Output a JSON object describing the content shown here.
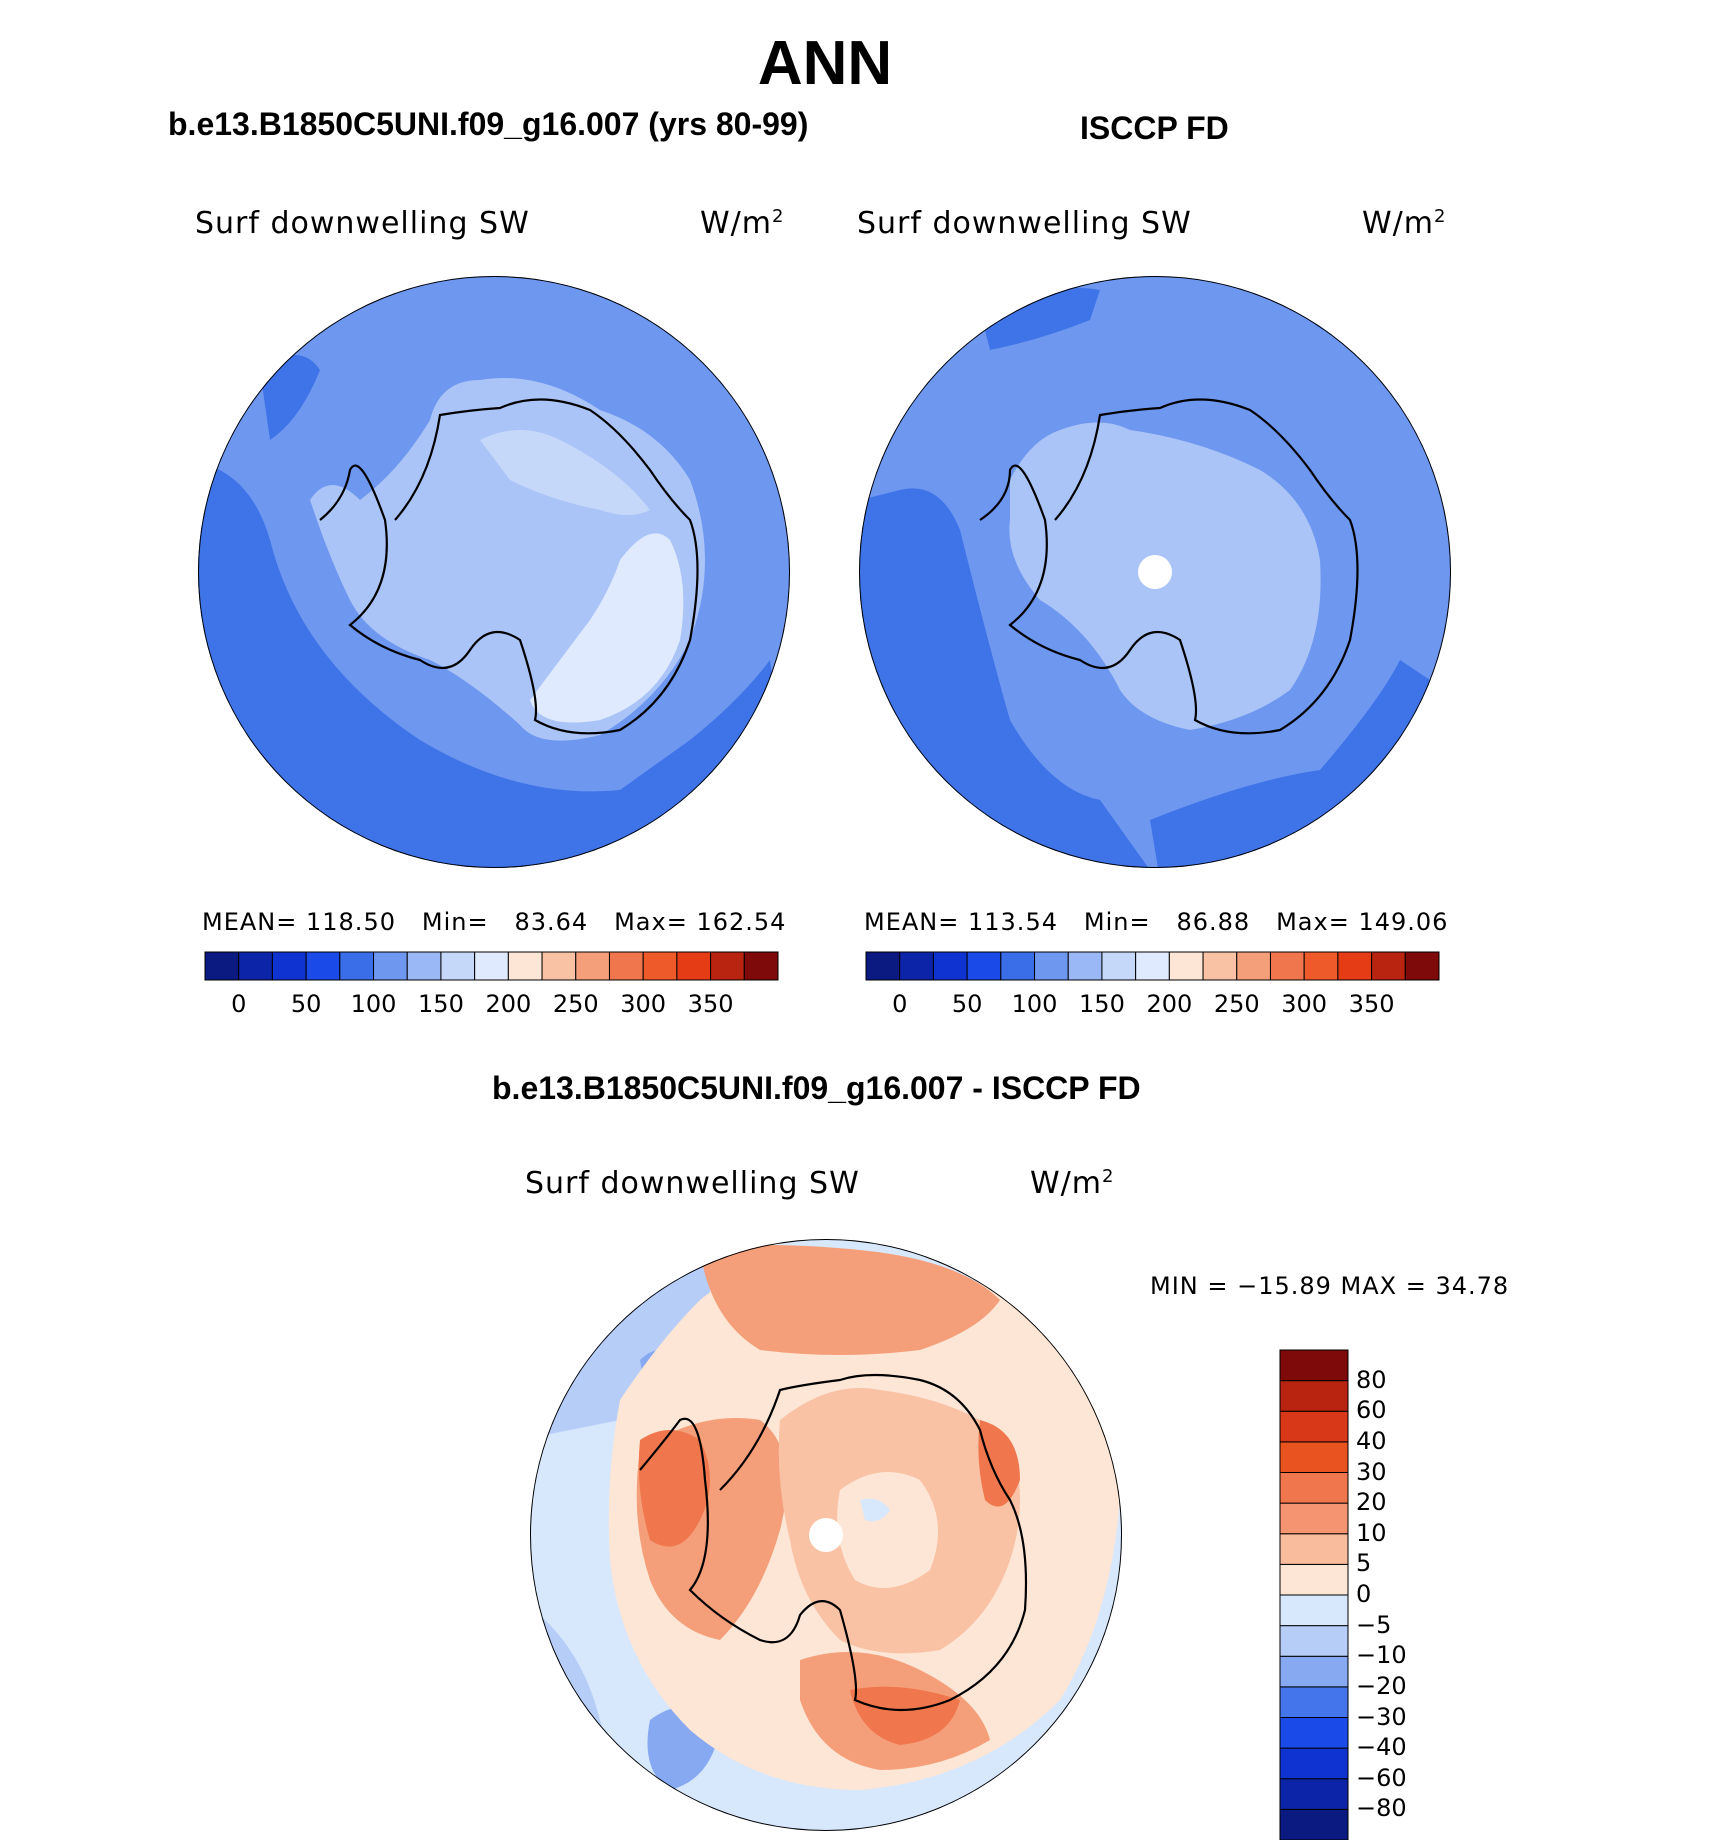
{
  "title": "ANN",
  "panels": {
    "model": {
      "heading": "b.e13.B1850C5UNI.f09_g16.007 (yrs 80-99)",
      "variable": "Surf  downwelling  SW",
      "units": "W/m",
      "units_sup": "2",
      "stats": {
        "mean_label": "MEAN=",
        "mean": "118.50",
        "min_label": "Min=",
        "min": "83.64",
        "max_label": "Max=",
        "max": "162.54"
      }
    },
    "obs": {
      "heading": "ISCCP FD",
      "variable": "Surf  downwelling  SW",
      "units": "W/m",
      "units_sup": "2",
      "stats": {
        "mean_label": "MEAN=",
        "mean": "113.54",
        "min_label": "Min=",
        "min": "86.88",
        "max_label": "Max=",
        "max": "149.06"
      }
    },
    "diff": {
      "heading": "b.e13.B1850C5UNI.f09_g16.007 - ISCCP FD",
      "variable": "Surf  downwelling  SW",
      "units": "W/m",
      "units_sup": "2",
      "minmax": "MIN  =  −15.89  MAX  =    34.78"
    }
  },
  "colorbar_abs": {
    "colors": [
      "#0a1a80",
      "#0b24a8",
      "#0f33d0",
      "#1a4ae8",
      "#3a6de8",
      "#6e97f0",
      "#9ab8f5",
      "#c5d8fa",
      "#dfeaff",
      "#fde6d6",
      "#f9c2a4",
      "#f59f7a",
      "#f0774d",
      "#ef5a2a",
      "#e63c15",
      "#b82410",
      "#7e0a0a"
    ],
    "labels": [
      "0",
      "50",
      "100",
      "150",
      "200",
      "250",
      "300",
      "350"
    ]
  },
  "colorbar_diff": {
    "colors": [
      "#0a1a80",
      "#0b24a8",
      "#0f33d0",
      "#1a4ae8",
      "#4575ea",
      "#86a9f2",
      "#b6cdf8",
      "#d7e7fc",
      "#fde6d6",
      "#f9bc9c",
      "#f59470",
      "#f0774d",
      "#e9531f",
      "#d93818",
      "#b82410",
      "#7e0a0a"
    ],
    "labels": [
      "80",
      "60",
      "40",
      "30",
      "20",
      "10",
      "5",
      "0",
      "−5",
      "−10",
      "−20",
      "−30",
      "−40",
      "−60",
      "−80"
    ]
  },
  "map_colors": {
    "ocean_a": "#3f73e8",
    "ocean_b": "#6e97f0",
    "ice_a": "#aac4f7",
    "ice_b": "#c5d8fa",
    "ice_c": "#dfeaff",
    "warm_a": "#fde6d6",
    "warm_b": "#f9c2a4",
    "warm_c": "#f59f7a",
    "warm_d": "#f0774d",
    "cool_a": "#d7e7fc",
    "cool_b": "#b6cdf8",
    "cool_c": "#86a9f2"
  }
}
